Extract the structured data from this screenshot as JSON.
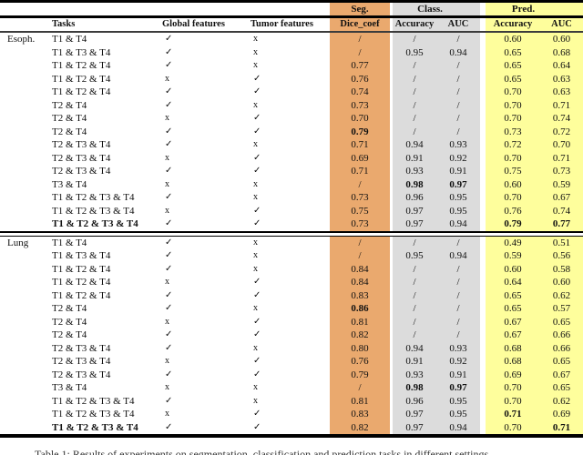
{
  "page": {
    "caption": "Table 1: Results of experiments on segmentation, classification and prediction tasks in different settings."
  },
  "colors": {
    "seg_bg": "#EAA96E",
    "class_bg": "#DCDCDC",
    "pred_bg": "#FEFE9C"
  },
  "table": {
    "group_headers": {
      "seg": "Seg.",
      "class": "Class.",
      "pred": "Pred."
    },
    "column_headers": {
      "tasks": "Tasks",
      "global": "Global features",
      "tumor": "Tumor features",
      "dice": "Dice_coef",
      "class_accuracy": "Accuracy",
      "class_auc": "AUC",
      "pred_accuracy": "Accuracy",
      "pred_auc": "AUC"
    },
    "marks": {
      "check": "✓",
      "cross": "x"
    },
    "sections": [
      {
        "name": "Esoph.",
        "rows": [
          {
            "task": "T1 & T4",
            "g": "✓",
            "t": "x",
            "d": "/",
            "ca": "/",
            "cu": "/",
            "pa": "0.60",
            "pu": "0.60",
            "bold": []
          },
          {
            "task": "T1 & T3 & T4",
            "g": "✓",
            "t": "x",
            "d": "/",
            "ca": "0.95",
            "cu": "0.94",
            "pa": "0.65",
            "pu": "0.68",
            "bold": []
          },
          {
            "task": "T1 & T2 & T4",
            "g": "✓",
            "t": "x",
            "d": "0.77",
            "ca": "/",
            "cu": "/",
            "pa": "0.65",
            "pu": "0.64",
            "bold": []
          },
          {
            "task": "T1 & T2 & T4",
            "g": "x",
            "t": "✓",
            "d": "0.76",
            "ca": "/",
            "cu": "/",
            "pa": "0.65",
            "pu": "0.63",
            "bold": []
          },
          {
            "task": "T1 & T2 & T4",
            "g": "✓",
            "t": "✓",
            "d": "0.74",
            "ca": "/",
            "cu": "/",
            "pa": "0.70",
            "pu": "0.63",
            "bold": []
          },
          {
            "task": "T2 & T4",
            "g": "✓",
            "t": "x",
            "d": "0.73",
            "ca": "/",
            "cu": "/",
            "pa": "0.70",
            "pu": "0.71",
            "bold": []
          },
          {
            "task": "T2 & T4",
            "g": "x",
            "t": "✓",
            "d": "0.70",
            "ca": "/",
            "cu": "/",
            "pa": "0.70",
            "pu": "0.74",
            "bold": []
          },
          {
            "task": "T2 & T4",
            "g": "✓",
            "t": "✓",
            "d": "0.79",
            "ca": "/",
            "cu": "/",
            "pa": "0.73",
            "pu": "0.72",
            "bold": [
              "d"
            ]
          },
          {
            "task": "T2 & T3 & T4",
            "g": "✓",
            "t": "x",
            "d": "0.71",
            "ca": "0.94",
            "cu": "0.93",
            "pa": "0.72",
            "pu": "0.70",
            "bold": []
          },
          {
            "task": "T2 & T3 & T4",
            "g": "x",
            "t": "✓",
            "d": "0.69",
            "ca": "0.91",
            "cu": "0.92",
            "pa": "0.70",
            "pu": "0.71",
            "bold": []
          },
          {
            "task": "T2 & T3 & T4",
            "g": "✓",
            "t": "✓",
            "d": "0.71",
            "ca": "0.93",
            "cu": "0.91",
            "pa": "0.75",
            "pu": "0.73",
            "bold": []
          },
          {
            "task": "T3 & T4",
            "g": "x",
            "t": "x",
            "d": "/",
            "ca": "0.98",
            "cu": "0.97",
            "pa": "0.60",
            "pu": "0.59",
            "bold": [
              "ca",
              "cu"
            ]
          },
          {
            "task": "T1 & T2 & T3 & T4",
            "g": "✓",
            "t": "x",
            "d": "0.73",
            "ca": "0.96",
            "cu": "0.95",
            "pa": "0.70",
            "pu": "0.67",
            "bold": []
          },
          {
            "task": "T1 & T2 & T3 & T4",
            "g": "x",
            "t": "✓",
            "d": "0.75",
            "ca": "0.97",
            "cu": "0.95",
            "pa": "0.76",
            "pu": "0.74",
            "bold": []
          },
          {
            "task": "T1 & T2 & T3 & T4",
            "g": "✓",
            "t": "✓",
            "d": "0.73",
            "ca": "0.97",
            "cu": "0.94",
            "pa": "0.79",
            "pu": "0.77",
            "bold": [
              "task",
              "pa",
              "pu"
            ]
          }
        ]
      },
      {
        "name": "Lung",
        "rows": [
          {
            "task": "T1 & T4",
            "g": "✓",
            "t": "x",
            "d": "/",
            "ca": "/",
            "cu": "/",
            "pa": "0.49",
            "pu": "0.51",
            "bold": []
          },
          {
            "task": "T1 & T3 & T4",
            "g": "✓",
            "t": "x",
            "d": "/",
            "ca": "0.95",
            "cu": "0.94",
            "pa": "0.59",
            "pu": "0.56",
            "bold": []
          },
          {
            "task": "T1 & T2 & T4",
            "g": "✓",
            "t": "x",
            "d": "0.84",
            "ca": "/",
            "cu": "/",
            "pa": "0.60",
            "pu": "0.58",
            "bold": []
          },
          {
            "task": "T1 & T2 & T4",
            "g": "x",
            "t": "✓",
            "d": "0.84",
            "ca": "/",
            "cu": "/",
            "pa": "0.64",
            "pu": "0.60",
            "bold": []
          },
          {
            "task": "T1 & T2 & T4",
            "g": "✓",
            "t": "✓",
            "d": "0.83",
            "ca": "/",
            "cu": "/",
            "pa": "0.65",
            "pu": "0.62",
            "bold": []
          },
          {
            "task": "T2 & T4",
            "g": "✓",
            "t": "x",
            "d": "0.86",
            "ca": "/",
            "cu": "/",
            "pa": "0.65",
            "pu": "0.57",
            "bold": [
              "d"
            ]
          },
          {
            "task": "T2 & T4",
            "g": "x",
            "t": "✓",
            "d": "0.81",
            "ca": "/",
            "cu": "/",
            "pa": "0.67",
            "pu": "0.65",
            "bold": []
          },
          {
            "task": "T2 & T4",
            "g": "✓",
            "t": "✓",
            "d": "0.82",
            "ca": "/",
            "cu": "/",
            "pa": "0.67",
            "pu": "0.66",
            "bold": []
          },
          {
            "task": "T2 & T3 & T4",
            "g": "✓",
            "t": "x",
            "d": "0.80",
            "ca": "0.94",
            "cu": "0.93",
            "pa": "0.68",
            "pu": "0.66",
            "bold": []
          },
          {
            "task": "T2 & T3 & T4",
            "g": "x",
            "t": "✓",
            "d": "0.76",
            "ca": "0.91",
            "cu": "0.92",
            "pa": "0.68",
            "pu": "0.65",
            "bold": []
          },
          {
            "task": "T2 & T3 & T4",
            "g": "✓",
            "t": "✓",
            "d": "0.79",
            "ca": "0.93",
            "cu": "0.91",
            "pa": "0.69",
            "pu": "0.67",
            "bold": []
          },
          {
            "task": "T3 & T4",
            "g": "x",
            "t": "x",
            "d": "/",
            "ca": "0.98",
            "cu": "0.97",
            "pa": "0.70",
            "pu": "0.65",
            "bold": [
              "ca",
              "cu"
            ]
          },
          {
            "task": "T1 & T2 & T3 & T4",
            "g": "✓",
            "t": "x",
            "d": "0.81",
            "ca": "0.96",
            "cu": "0.95",
            "pa": "0.70",
            "pu": "0.62",
            "bold": []
          },
          {
            "task": "T1 & T2 & T3 & T4",
            "g": "x",
            "t": "✓",
            "d": "0.83",
            "ca": "0.97",
            "cu": "0.95",
            "pa": "0.71",
            "pu": "0.69",
            "bold": [
              "pa"
            ]
          },
          {
            "task": "T1 & T2 & T3 & T4",
            "g": "✓",
            "t": "✓",
            "d": "0.82",
            "ca": "0.97",
            "cu": "0.94",
            "pa": "0.70",
            "pu": "0.71",
            "bold": [
              "task",
              "pu"
            ]
          }
        ]
      }
    ]
  }
}
